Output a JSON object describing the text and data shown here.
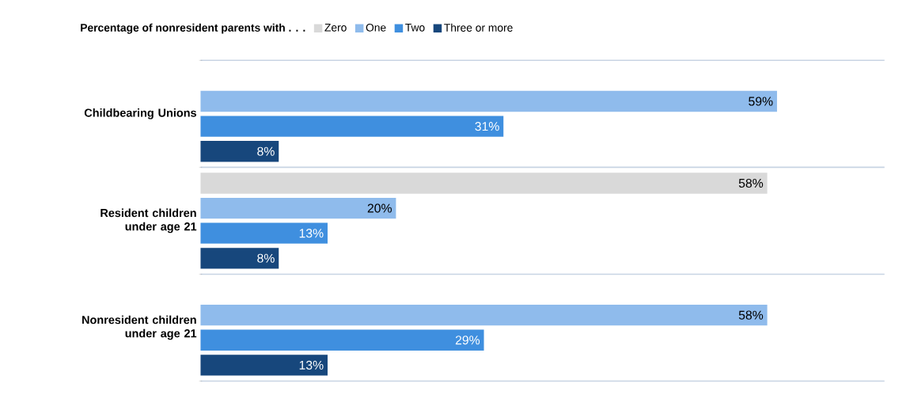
{
  "chart_data": {
    "type": "bar",
    "orientation": "horizontal",
    "legend_title": "Percentage of nonresident parents with . . .",
    "categories": [
      "Childbearing Unions",
      "Resident children under age 21",
      "Nonresident children under age 21"
    ],
    "series": [
      {
        "name": "Zero",
        "color": "#d9d9d9",
        "values": [
          null,
          58,
          null
        ],
        "value_labels": [
          null,
          "58%",
          null
        ]
      },
      {
        "name": "One",
        "color": "#8fbbec",
        "values": [
          59,
          20,
          58
        ],
        "value_labels": [
          "59%",
          "20%",
          "58%"
        ]
      },
      {
        "name": "Two",
        "color": "#3f8fdf",
        "values": [
          31,
          13,
          29
        ],
        "value_labels": [
          "31%",
          "13%",
          "29%"
        ]
      },
      {
        "name": "Three or more",
        "color": "#17477c",
        "values": [
          8,
          8,
          13
        ],
        "value_labels": [
          "8%",
          "8%",
          "13%"
        ]
      }
    ],
    "xlim": [
      0,
      70
    ],
    "tick_labels": "y",
    "grid": "y",
    "legend": "top"
  }
}
